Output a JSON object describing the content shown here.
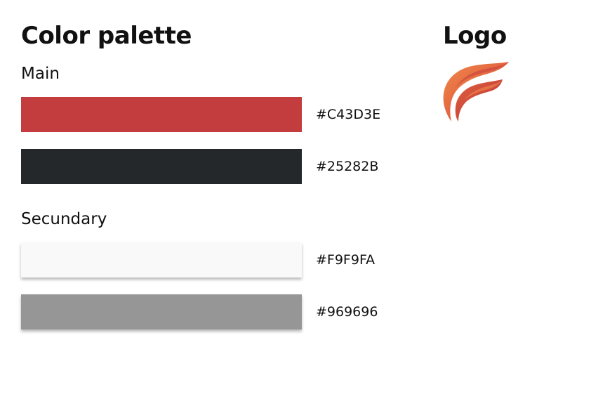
{
  "palette_title": "Color palette",
  "logo_title": "Logo",
  "sections": {
    "main": {
      "label": "Main",
      "swatches": [
        {
          "hex": "#C43D3E",
          "color": "#C43D3E"
        },
        {
          "hex": "#25282B",
          "color": "#25282B"
        }
      ]
    },
    "secondary": {
      "label": "Secundary",
      "swatches": [
        {
          "hex": "#F9F9FA",
          "color": "#F9F9FA"
        },
        {
          "hex": "#969696",
          "color": "#969696"
        }
      ]
    }
  },
  "logo": {
    "icon": "flame-logo-icon",
    "colors": [
      "#E2613E",
      "#C43D3E",
      "#F08A4B"
    ]
  }
}
